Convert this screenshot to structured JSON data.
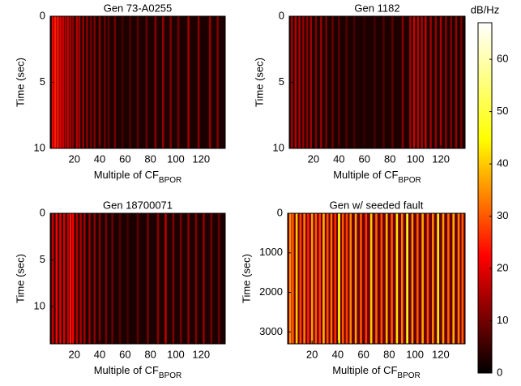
{
  "chart_data": [
    {
      "type": "heatmap",
      "title": "Gen 73-A0255",
      "xlabel": "Multiple of CF",
      "xlabel_sub": "BPOR",
      "ylabel": "Time (sec)",
      "xlim": [
        1,
        139
      ],
      "ylim": [
        0,
        10
      ],
      "xticks": [
        20,
        40,
        60,
        80,
        100,
        120
      ],
      "yticks": [
        0,
        5,
        10
      ],
      "x": [
        3,
        5,
        7,
        9,
        11,
        13,
        15,
        17,
        19,
        22,
        24,
        27,
        30,
        33,
        36,
        40,
        44,
        47,
        52,
        58,
        64,
        70,
        77,
        84,
        90,
        96,
        102,
        110,
        118,
        127,
        133
      ],
      "values": [
        22,
        25,
        24,
        20,
        18,
        15,
        17,
        14,
        12,
        16,
        14,
        13,
        12,
        10,
        11,
        12,
        9,
        8,
        10,
        6,
        7,
        8,
        9,
        12,
        13,
        11,
        10,
        14,
        12,
        13,
        11
      ]
    },
    {
      "type": "heatmap",
      "title": "Gen 1182",
      "xlabel": "Multiple of CF",
      "xlabel_sub": "BPOR",
      "ylabel": "Time (sec)",
      "xlim": [
        1,
        139
      ],
      "ylim": [
        0,
        10
      ],
      "xticks": [
        20,
        40,
        60,
        80,
        100,
        120
      ],
      "yticks": [
        0,
        5,
        10
      ],
      "x": [
        3,
        6,
        9,
        12,
        15,
        18,
        22,
        26,
        30,
        35,
        40,
        46,
        52,
        60,
        68,
        75,
        82,
        90,
        96,
        99,
        102,
        105,
        108,
        112,
        116,
        120,
        124,
        128,
        132,
        136
      ],
      "values": [
        14,
        16,
        15,
        13,
        12,
        14,
        11,
        13,
        10,
        9,
        8,
        7,
        6,
        5,
        6,
        7,
        8,
        12,
        14,
        18,
        16,
        15,
        17,
        14,
        13,
        15,
        12,
        11,
        13,
        10
      ]
    },
    {
      "type": "heatmap",
      "title": "Gen 18700071",
      "xlabel": "Multiple of CF",
      "xlabel_sub": "BPOR",
      "ylabel": "Time (sec)",
      "xlim": [
        1,
        139
      ],
      "ylim": [
        0,
        14
      ],
      "xticks": [
        20,
        40,
        60,
        80,
        100,
        120
      ],
      "yticks": [
        0,
        5,
        10
      ],
      "x": [
        3,
        6,
        9,
        12,
        15,
        17,
        19,
        22,
        25,
        28,
        32,
        36,
        40,
        45,
        50,
        56,
        62,
        70,
        78,
        86,
        92,
        98,
        104,
        110,
        116,
        122,
        128,
        134
      ],
      "values": [
        18,
        22,
        20,
        19,
        17,
        24,
        21,
        16,
        15,
        14,
        13,
        12,
        11,
        10,
        9,
        7,
        6,
        8,
        10,
        12,
        16,
        11,
        10,
        12,
        11,
        13,
        10,
        9
      ]
    },
    {
      "type": "heatmap",
      "title": "Gen w/ seeded fault",
      "xlabel": "Multiple of CF",
      "xlabel_sub": "BPOR",
      "ylabel": "Time (sec)",
      "xlim": [
        1,
        139
      ],
      "ylim": [
        0,
        3300
      ],
      "xticks": [
        20,
        40,
        60,
        80,
        100,
        120
      ],
      "yticks": [
        0,
        1000,
        2000,
        3000
      ],
      "x": [
        3,
        5,
        8,
        11,
        14,
        17,
        20,
        23,
        26,
        29,
        32,
        35,
        38,
        41,
        44,
        47,
        50,
        54,
        58,
        62,
        66,
        70,
        74,
        78,
        82,
        86,
        90,
        94,
        98,
        102,
        106,
        110,
        114,
        118,
        122,
        126,
        130,
        134,
        137
      ],
      "values": [
        35,
        30,
        40,
        28,
        33,
        25,
        36,
        30,
        27,
        38,
        29,
        32,
        26,
        45,
        30,
        28,
        34,
        36,
        30,
        27,
        40,
        31,
        29,
        38,
        30,
        42,
        33,
        48,
        35,
        30,
        37,
        29,
        34,
        44,
        36,
        31,
        38,
        33,
        30
      ]
    }
  ],
  "colorbar": {
    "label": "dB/Hz",
    "lim": [
      0,
      67
    ],
    "ticks": [
      0,
      10,
      20,
      30,
      40,
      50,
      60
    ]
  }
}
